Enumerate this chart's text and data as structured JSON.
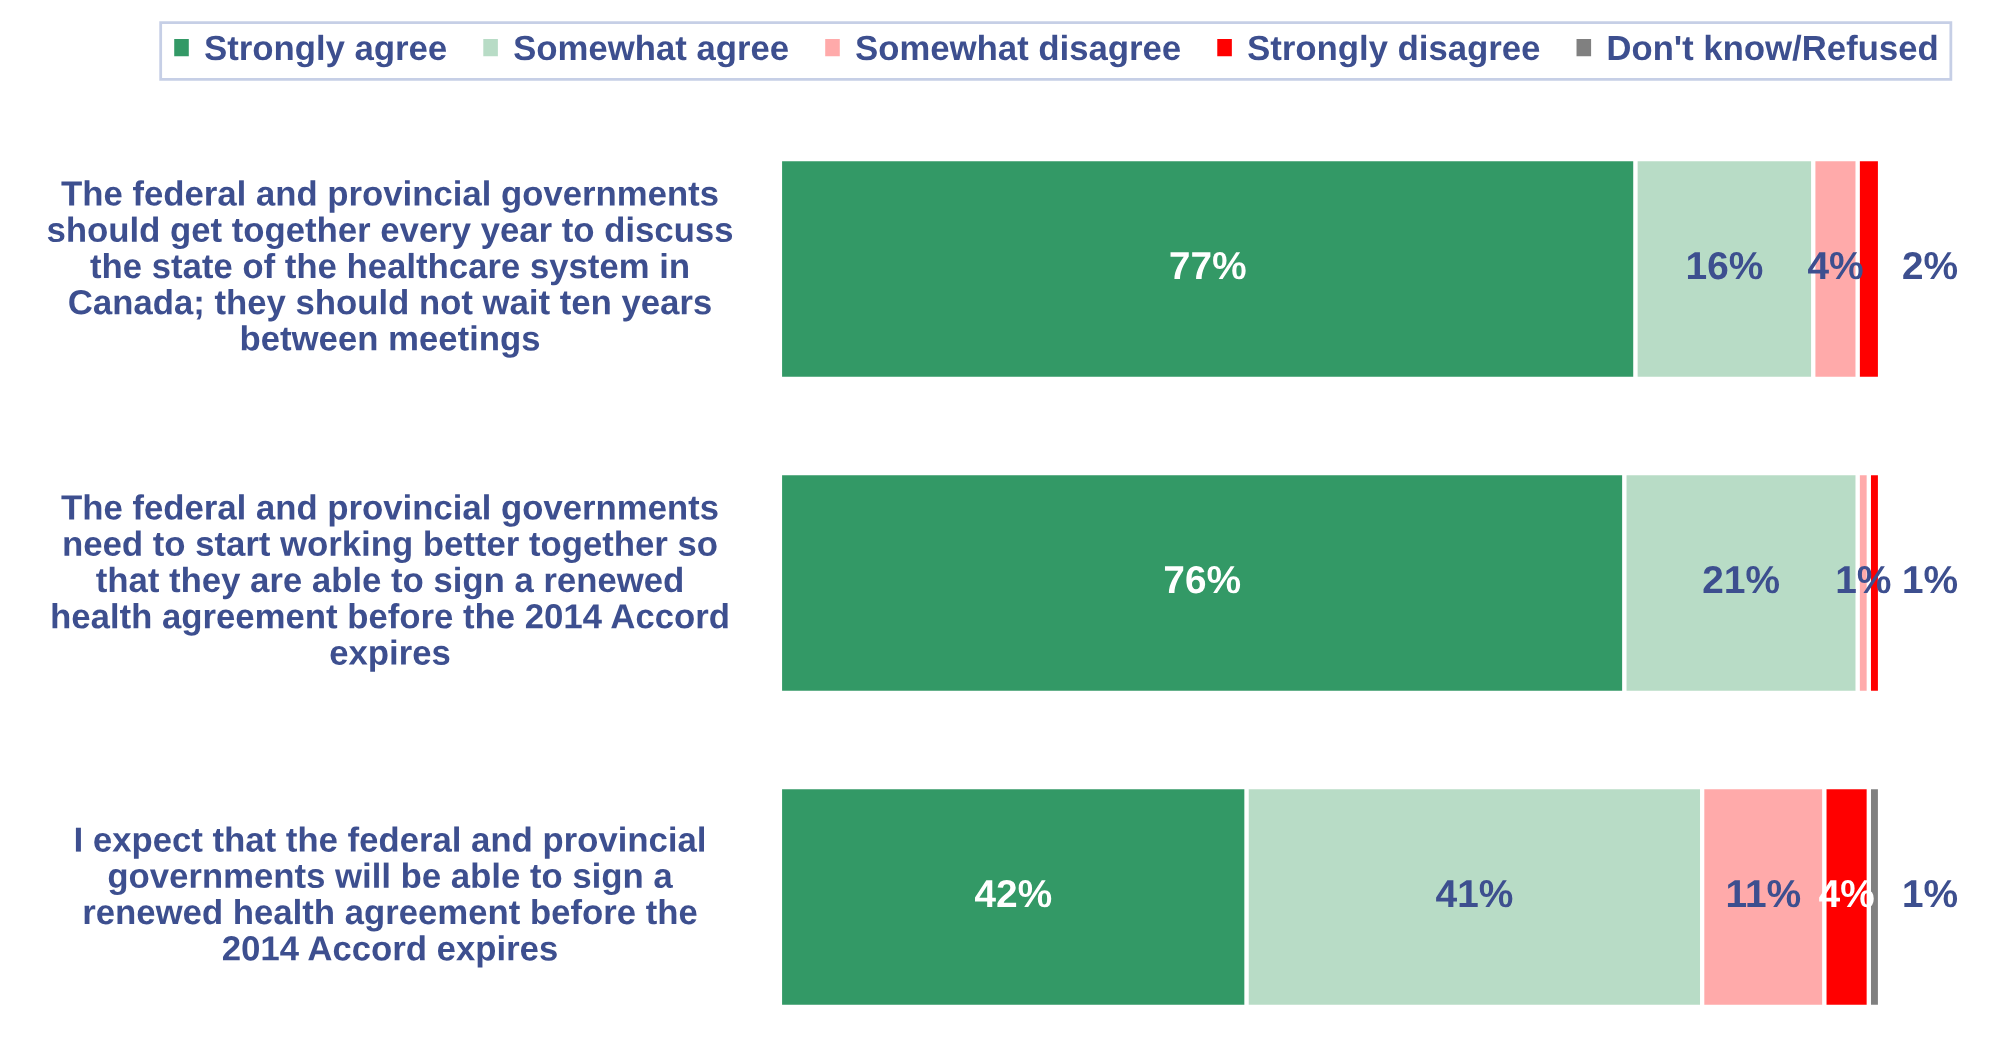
{
  "chart_data": {
    "type": "bar",
    "orientation": "horizontal",
    "stacked": true,
    "categories": [
      "The federal and provincial governments\nshould get together every year to discuss\nthe state of the healthcare system in\nCanada; they should not wait ten years\nbetween meetings",
      "The federal and provincial governments\nneed to start working better together so\nthat they are able to sign a renewed\nhealth agreement before the 2014 Accord\nexpires",
      "I expect that the federal and provincial\ngovernments will be able to sign a\nrenewed health agreement before the\n2014 Accord expires"
    ],
    "series": [
      {
        "name": "Strongly agree",
        "color": "#339966",
        "values": [
          77,
          76,
          42
        ],
        "value_labels": [
          "77%",
          "76%",
          "42%"
        ]
      },
      {
        "name": "Somewhat agree",
        "color": "#b8dcc6",
        "values": [
          16,
          21,
          41
        ],
        "value_labels": [
          "16%",
          "21%",
          "41%"
        ]
      },
      {
        "name": "Somewhat disagree",
        "color": "#ffaaaa",
        "values": [
          4,
          1,
          11
        ],
        "value_labels": [
          "4%",
          "1%",
          "11%"
        ]
      },
      {
        "name": "Strongly disagree",
        "color": "#ff0000",
        "values": [
          2,
          1,
          4
        ],
        "value_labels": [
          "2%",
          "1%",
          "4%"
        ]
      },
      {
        "name": "Don't know/Refused",
        "color": "#808080",
        "values": [
          null,
          null,
          1
        ],
        "value_labels": [
          null,
          null,
          "1%"
        ]
      }
    ],
    "tick_labels": "y",
    "legend": "top"
  }
}
